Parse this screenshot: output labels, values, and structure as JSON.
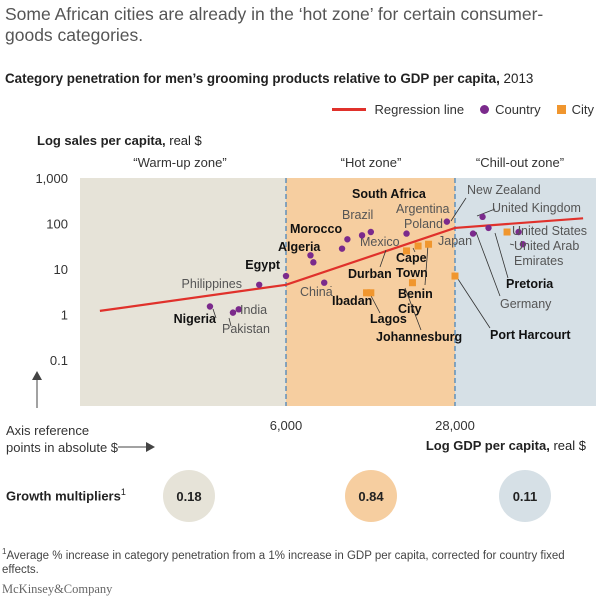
{
  "headline": "Some African cities are already in the ‘hot zone’ for certain consumer-goods categories.",
  "subtitle_bold": "Category penetration for men’s grooming products relative to GDP per capita,",
  "subtitle_year": "2013",
  "legend": {
    "regression": "Regression line",
    "country": "Country",
    "city": "City"
  },
  "y_axis_label_bold": "Log sales per capita,",
  "y_axis_label_unit": "real $",
  "x_axis_label_bold": "Log GDP per capita,",
  "x_axis_label_unit": "real $",
  "axis_reference_line1": "Axis reference",
  "axis_reference_line2": "points in absolute $",
  "growth_label": "Growth multipliers",
  "growth_sup": "1",
  "footnote_sup": "1",
  "footnote": "Average % increase in category penetration from a 1% increase in GDP per capita, corrected for country fixed effects.",
  "brand": "McKinsey&Company",
  "colors": {
    "warmup": "#e6e3d8",
    "hot": "#f6ceA0",
    "chillout": "#d6e0e6",
    "regression": "#e0312b",
    "country": "#7b2a8c",
    "city": "#f0962e",
    "divider": "#3f7fb8"
  },
  "chart_data": {
    "type": "scatter",
    "y_scale": "log",
    "x_scale": "log",
    "y_ticks": [
      "1,000",
      "100",
      "10",
      "1",
      "0.1"
    ],
    "x_ticks": [
      "6,000",
      "28,000"
    ],
    "zones": [
      {
        "name": "“Warm-up zone”",
        "growth_multiplier": "0.18"
      },
      {
        "name": "“Hot zone”",
        "growth_multiplier": "0.84"
      },
      {
        "name": "“Chill-out zone”",
        "growth_multiplier": "0.11"
      }
    ],
    "points": [
      {
        "label": "Philippines",
        "type": "country",
        "bold": false,
        "x": 4700,
        "y": 4.5
      },
      {
        "label": "India",
        "type": "country",
        "bold": false,
        "x": 3900,
        "y": 1.3
      },
      {
        "label": "Pakistan",
        "type": "country",
        "bold": false,
        "x": 3700,
        "y": 1.1
      },
      {
        "label": "Nigeria",
        "type": "country",
        "bold": true,
        "x": 3000,
        "y": 1.5
      },
      {
        "label": "Egypt",
        "type": "country",
        "bold": true,
        "x": 6000,
        "y": 7
      },
      {
        "label": "China",
        "type": "country",
        "bold": false,
        "x": 8500,
        "y": 5
      },
      {
        "label": "Algeria",
        "type": "country",
        "bold": true,
        "x": 7500,
        "y": 20
      },
      {
        "label": "Morocco",
        "type": "country",
        "bold": true,
        "x": 7700,
        "y": 14
      },
      {
        "label": "Brazil",
        "type": "country",
        "bold": false,
        "x": 10500,
        "y": 45
      },
      {
        "label": "Mexico",
        "type": "country",
        "bold": false,
        "x": 10000,
        "y": 28
      },
      {
        "label": "South Africa",
        "type": "country",
        "bold": true,
        "x": 12000,
        "y": 55
      },
      {
        "label": "Argentina",
        "type": "country",
        "bold": false,
        "x": 13000,
        "y": 65
      },
      {
        "label": "Poland",
        "type": "country",
        "bold": false,
        "x": 18000,
        "y": 60
      },
      {
        "label": "New Zealand",
        "type": "country",
        "bold": false,
        "x": 26000,
        "y": 110
      },
      {
        "label": "United Kingdom",
        "type": "country",
        "bold": false,
        "x": 36000,
        "y": 140
      },
      {
        "label": "United States",
        "type": "country",
        "bold": false,
        "x": 50000,
        "y": 65
      },
      {
        "label": "Japan",
        "type": "country",
        "bold": false,
        "x": 33000,
        "y": 60
      },
      {
        "label": "Germany",
        "type": "country",
        "bold": false,
        "x": 38000,
        "y": 80
      },
      {
        "label": "United Arab Emirates",
        "type": "country",
        "bold": false,
        "x": 52000,
        "y": 35
      },
      {
        "label": "Pretoria",
        "type": "city",
        "bold": true,
        "x": 45000,
        "y": 65
      },
      {
        "label": "Cape Town",
        "type": "city",
        "bold": true,
        "x": 20000,
        "y": 32
      },
      {
        "label": "Durban",
        "type": "city",
        "bold": true,
        "x": 18000,
        "y": 25
      },
      {
        "label": "Benin City",
        "type": "city",
        "bold": true,
        "x": 22000,
        "y": 35
      },
      {
        "label": "Ibadan",
        "type": "city",
        "bold": true,
        "x": 12500,
        "y": 3
      },
      {
        "label": "Lagos",
        "type": "city",
        "bold": true,
        "x": 13000,
        "y": 3
      },
      {
        "label": "Johannesburg",
        "type": "city",
        "bold": true,
        "x": 19000,
        "y": 5
      },
      {
        "label": "Port Harcourt",
        "type": "city",
        "bold": true,
        "x": 28000,
        "y": 7
      }
    ],
    "regression_line": [
      {
        "x": 1100,
        "y": 1.2
      },
      {
        "x": 6000,
        "y": 4.5
      },
      {
        "x": 28000,
        "y": 80
      },
      {
        "x": 90000,
        "y": 130
      }
    ]
  }
}
